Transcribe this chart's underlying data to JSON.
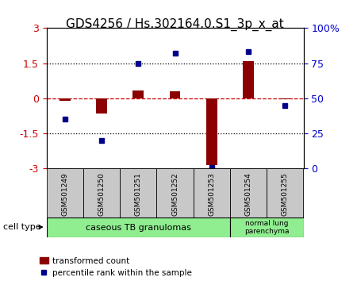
{
  "title": "GDS4256 / Hs.302164.0.S1_3p_x_at",
  "samples": [
    "GSM501249",
    "GSM501250",
    "GSM501251",
    "GSM501252",
    "GSM501253",
    "GSM501254",
    "GSM501255"
  ],
  "bar_values": [
    -0.12,
    -0.65,
    0.35,
    0.3,
    -2.85,
    1.6,
    -0.05
  ],
  "dot_values": [
    35,
    20,
    75,
    82,
    1,
    83,
    45
  ],
  "ylim_left": [
    -3,
    3
  ],
  "ylim_right": [
    0,
    100
  ],
  "bar_color": "#8B0000",
  "dot_color": "#00008B",
  "zero_line_color": "#CC0000",
  "cell_type_label": "cell type",
  "legend_bar_label": "transformed count",
  "legend_dot_label": "percentile rank within the sample",
  "background_color": "#ffffff",
  "tick_label_color_left": "#CC0000",
  "tick_label_color_right": "#0000CC",
  "yticks_left": [
    -3,
    -1.5,
    0,
    1.5,
    3
  ],
  "ytick_labels_left": [
    "-3",
    "-1.5",
    "0",
    "1.5",
    "3"
  ],
  "yticks_right": [
    0,
    25,
    50,
    75,
    100
  ],
  "ytick_labels_right": [
    "0",
    "25",
    "50",
    "75",
    "100%"
  ],
  "group1_count": 5,
  "group2_count": 2,
  "group1_label": "caseous TB granulomas",
  "group2_label": "normal lung\nparenchyma",
  "cell_bg": "#90EE90",
  "sample_box_bg": "#C8C8C8",
  "title_fontsize": 11
}
